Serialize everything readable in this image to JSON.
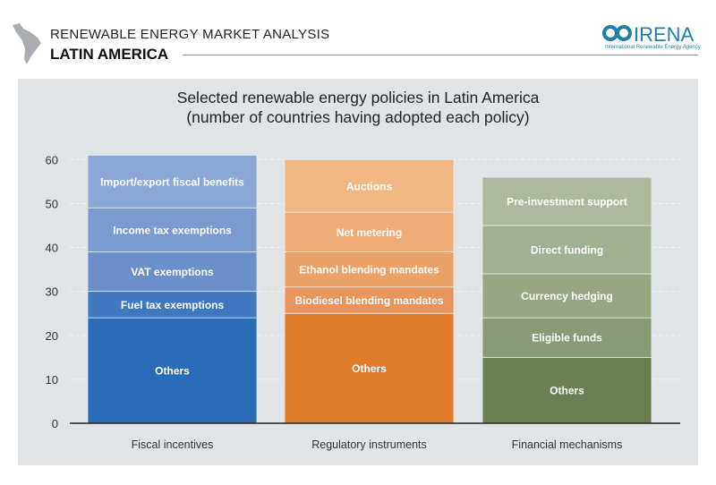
{
  "header": {
    "series_title": "RENEWABLE ENERGY MARKET ANALYSIS",
    "region": "LATIN AMERICA",
    "logo_text": "IRENA",
    "logo_subtitle": "International Renewable Energy Agency"
  },
  "chart_data": {
    "type": "bar",
    "stacked": true,
    "title": "Selected renewable energy policies in Latin America",
    "subtitle": "(number of countries having adopted each policy)",
    "xlabel": "",
    "ylabel": "",
    "ylim": [
      0,
      60
    ],
    "yticks": [
      0,
      10,
      20,
      30,
      40,
      50,
      60
    ],
    "grid": true,
    "categories": [
      "Fiscal incentives",
      "Regulatory instruments",
      "Financial mechanisms"
    ],
    "stacks": [
      {
        "category": "Fiscal incentives",
        "segments": [
          {
            "label": "Others",
            "value": 24,
            "color": "#2b6cb8"
          },
          {
            "label": "Fuel tax exemptions",
            "value": 6,
            "color": "#3f78c0"
          },
          {
            "label": "VAT exemptions",
            "value": 9,
            "color": "#6a8fcb"
          },
          {
            "label": "Income tax exemptions",
            "value": 10,
            "color": "#7b9ad0"
          },
          {
            "label": "Import/export fiscal benefits",
            "value": 12,
            "color": "#8ba7d6"
          }
        ]
      },
      {
        "category": "Regulatory instruments",
        "segments": [
          {
            "label": "Others",
            "value": 25,
            "color": "#e07b2a"
          },
          {
            "label": "Biodiesel blending mandates",
            "value": 6,
            "color": "#e8945a"
          },
          {
            "label": "Ethanol blending mandates",
            "value": 8,
            "color": "#eba066"
          },
          {
            "label": "Net metering",
            "value": 9,
            "color": "#eeab75"
          },
          {
            "label": "Auctions",
            "value": 12,
            "color": "#f0b783"
          }
        ]
      },
      {
        "category": "Financial mechanisms",
        "segments": [
          {
            "label": "Others",
            "value": 15,
            "color": "#6b7f55"
          },
          {
            "label": "Eligible funds",
            "value": 9,
            "color": "#8a9a76"
          },
          {
            "label": "Currency hedging",
            "value": 10,
            "color": "#98a684"
          },
          {
            "label": "Direct funding",
            "value": 11,
            "color": "#a3af91"
          },
          {
            "label": "Pre-investment support",
            "value": 11,
            "color": "#adb89c"
          }
        ]
      }
    ]
  }
}
